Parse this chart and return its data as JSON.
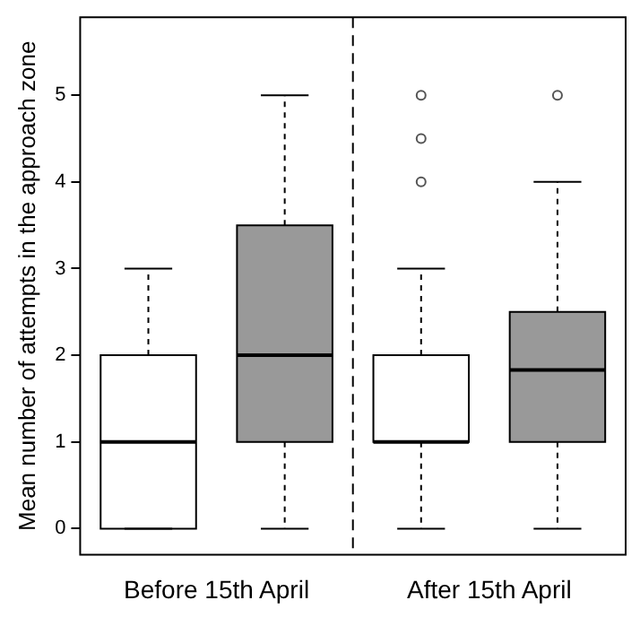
{
  "chart_data": {
    "type": "box",
    "ylabel": "Mean number of attempts in the approach zone",
    "categories": [
      "Before 15th April",
      "After 15th April"
    ],
    "series": [
      {
        "color": "#ffffff",
        "boxes": [
          {
            "low": 0,
            "q1": 0,
            "median": 1,
            "q3": 2,
            "high": 3
          },
          {
            "low": 0,
            "q1": 1,
            "median": 1,
            "q3": 2,
            "high": 3,
            "outliers": [
              4,
              4.5,
              5
            ]
          }
        ]
      },
      {
        "color": "#999999",
        "boxes": [
          {
            "low": 0,
            "q1": 1,
            "median": 2,
            "q3": 3.5,
            "high": 5
          },
          {
            "low": 0,
            "q1": 1,
            "median": 1.83,
            "q3": 2.5,
            "high": 4,
            "outliers": [
              5
            ]
          }
        ]
      }
    ],
    "ylim": [
      -0.3,
      5.9
    ],
    "yticks": [
      0,
      1,
      2,
      3,
      4,
      5
    ],
    "grid": false
  }
}
